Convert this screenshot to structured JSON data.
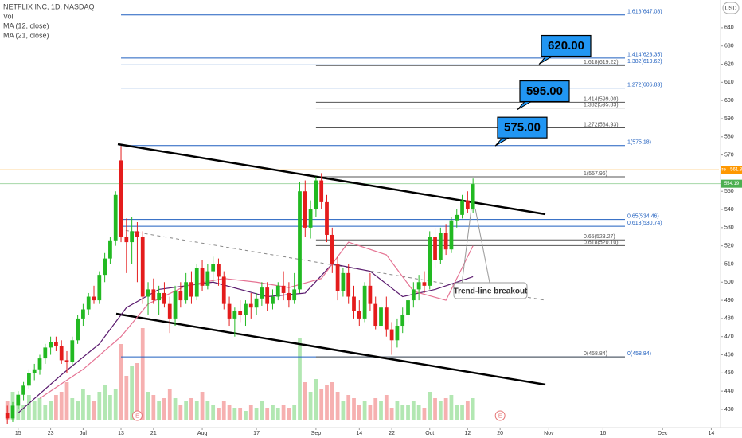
{
  "chart_data": {
    "type": "candlestick",
    "title": "NETFLIX INC, 1D, NASDAQ",
    "currency": "USD",
    "xlim": [
      -1.35,
      131.7
    ],
    "ylim": [
      419.9,
      655.3
    ],
    "yticks": [
      430,
      440,
      450,
      460,
      470,
      480,
      490,
      500,
      510,
      520,
      530,
      540,
      550,
      560,
      570,
      580,
      590,
      600,
      610,
      620,
      630,
      640
    ],
    "xticks": [
      {
        "value": 2,
        "label": "15"
      },
      {
        "value": 8,
        "label": "23"
      },
      {
        "value": 14,
        "label": "Jul"
      },
      {
        "value": 21,
        "label": "13"
      },
      {
        "value": 27,
        "label": "21"
      },
      {
        "value": 36,
        "label": "Aug"
      },
      {
        "value": 46,
        "label": "17"
      },
      {
        "value": 57,
        "label": "Sep"
      },
      {
        "value": 65,
        "label": "14"
      },
      {
        "value": 71,
        "label": "22"
      },
      {
        "value": 78,
        "label": "Oct"
      },
      {
        "value": 85,
        "label": "12"
      },
      {
        "value": 91,
        "label": "20"
      },
      {
        "value": 100,
        "label": "Nov"
      },
      {
        "value": 110,
        "label": "16"
      },
      {
        "value": 121,
        "label": "Dec"
      },
      {
        "value": 130,
        "label": "14"
      }
    ],
    "up_color": "#22b922",
    "down_color": "#e41c1c",
    "x": [
      0,
      1,
      2,
      3,
      4,
      5,
      6,
      7,
      8,
      9,
      10,
      11,
      12,
      13,
      14,
      15,
      16,
      17,
      18,
      19,
      20,
      21,
      22,
      23,
      24,
      25,
      26,
      27,
      28,
      29,
      30,
      31,
      32,
      33,
      34,
      35,
      36,
      37,
      38,
      39,
      40,
      41,
      42,
      43,
      44,
      45,
      46,
      47,
      48,
      49,
      50,
      51,
      52,
      53,
      54,
      55,
      56,
      57,
      58,
      59,
      60,
      61,
      62,
      63,
      64,
      65,
      66,
      67,
      68,
      69,
      70,
      71,
      72,
      73,
      74,
      75,
      76,
      77,
      78,
      79,
      80,
      81,
      82,
      83,
      84,
      85,
      86
    ],
    "open": [
      428,
      425,
      432,
      438,
      443,
      450,
      452,
      458,
      464,
      467,
      465,
      457,
      456,
      468,
      480,
      485,
      492,
      490,
      504,
      513,
      523,
      567,
      525,
      522,
      528,
      525,
      492,
      496,
      490,
      494,
      488,
      480,
      495,
      490,
      500,
      492,
      508,
      498,
      506,
      510,
      503,
      488,
      480,
      484,
      482,
      488,
      486,
      491,
      497,
      488,
      492,
      498,
      494,
      490,
      496,
      550,
      530,
      540,
      556,
      544,
      526,
      510,
      495,
      505,
      492,
      484,
      480,
      498,
      488,
      476,
      486,
      474,
      468,
      476,
      482,
      490,
      496,
      500,
      498,
      525,
      512,
      527,
      518,
      534,
      537,
      545,
      540
    ],
    "high": [
      432,
      434,
      440,
      445,
      452,
      455,
      460,
      466,
      470,
      470,
      468,
      462,
      470,
      482,
      488,
      494,
      498,
      506,
      516,
      525,
      550,
      575,
      535,
      536,
      533,
      528,
      500,
      502,
      498,
      500,
      492,
      498,
      500,
      505,
      506,
      510,
      512,
      510,
      514,
      513,
      506,
      492,
      486,
      490,
      490,
      494,
      494,
      500,
      500,
      496,
      500,
      506,
      500,
      505,
      555,
      556,
      545,
      558,
      560,
      548,
      530,
      514,
      508,
      510,
      498,
      490,
      500,
      505,
      492,
      490,
      492,
      478,
      480,
      486,
      492,
      500,
      504,
      506,
      528,
      530,
      530,
      532,
      536,
      540,
      548,
      550,
      557
    ],
    "low": [
      422,
      423,
      430,
      435,
      441,
      446,
      449,
      455,
      460,
      462,
      455,
      450,
      454,
      466,
      476,
      482,
      488,
      488,
      500,
      510,
      520,
      522,
      505,
      510,
      500,
      488,
      482,
      488,
      482,
      486,
      472,
      476,
      486,
      488,
      488,
      490,
      495,
      496,
      500,
      498,
      485,
      476,
      470,
      478,
      476,
      480,
      482,
      487,
      484,
      485,
      490,
      490,
      486,
      488,
      494,
      525,
      524,
      536,
      540,
      522,
      505,
      490,
      492,
      488,
      480,
      476,
      478,
      484,
      474,
      472,
      470,
      460,
      464,
      472,
      478,
      486,
      490,
      494,
      496,
      508,
      510,
      515,
      516,
      530,
      535,
      538,
      538
    ],
    "close": [
      425,
      432,
      438,
      443,
      450,
      452,
      458,
      464,
      467,
      465,
      457,
      456,
      468,
      480,
      485,
      492,
      490,
      504,
      513,
      523,
      548,
      525,
      522,
      528,
      525,
      492,
      496,
      490,
      494,
      488,
      480,
      495,
      490,
      500,
      492,
      508,
      498,
      506,
      510,
      503,
      488,
      480,
      484,
      482,
      488,
      486,
      491,
      497,
      488,
      492,
      498,
      494,
      490,
      496,
      550,
      530,
      540,
      556,
      544,
      526,
      510,
      495,
      505,
      492,
      484,
      480,
      498,
      488,
      476,
      486,
      474,
      468,
      476,
      482,
      490,
      496,
      500,
      498,
      525,
      512,
      527,
      518,
      534,
      537,
      545,
      540,
      554
    ],
    "volume": {
      "name": "Vol",
      "vlim": [
        0,
        40
      ],
      "values": [
        6,
        9,
        7,
        5,
        8,
        6,
        7,
        5,
        6,
        8,
        9,
        12,
        7,
        6,
        10,
        8,
        6,
        9,
        11,
        8,
        10,
        24,
        14,
        17,
        18,
        29,
        9,
        8,
        6,
        7,
        10,
        7,
        5,
        6,
        7,
        6,
        9,
        6,
        5,
        4,
        6,
        5,
        4,
        4,
        3,
        5,
        4,
        6,
        4,
        5,
        4,
        5,
        4,
        5,
        26,
        12,
        9,
        13,
        10,
        11,
        12,
        9,
        6,
        8,
        7,
        5,
        6,
        5,
        7,
        6,
        8,
        4,
        6,
        5,
        5,
        6,
        5,
        4,
        9,
        7,
        6,
        7,
        8,
        5,
        5,
        6,
        7
      ]
    },
    "series": [
      {
        "name": "MA (12, close)",
        "color": "#5a1a6e",
        "x": [
          2,
          10,
          17,
          22,
          28,
          38,
          48,
          55,
          60,
          67,
          73,
          79,
          86
        ],
        "values": [
          428,
          449,
          466,
          486,
          496,
          500,
          492,
          494,
          510,
          506,
          492,
          496,
          503
        ]
      },
      {
        "name": "MA (21, close)",
        "color": "#e57393",
        "x": [
          6,
          14,
          21,
          26,
          33,
          40,
          46,
          52,
          58,
          63,
          70,
          75,
          81,
          86
        ],
        "values": [
          436,
          452,
          470,
          488,
          498,
          502,
          500,
          497,
          502,
          522,
          515,
          495,
          490,
          520
        ]
      }
    ],
    "fib_sets": [
      {
        "start": 21,
        "color": "#1f5fbf",
        "levels": [
          {
            "value": 647.08,
            "label": "1.618(647.08)"
          },
          {
            "value": 623.35,
            "label": "1.414(623.35)"
          },
          {
            "value": 619.62,
            "label": "1.382(619.62)"
          },
          {
            "value": 606.83,
            "label": "1.272(606.83)"
          },
          {
            "value": 575.18,
            "label": "1(575.18)"
          },
          {
            "value": 534.46,
            "label": "0.65(534.46)"
          },
          {
            "value": 530.74,
            "label": "0.618(530.74)"
          },
          {
            "value": 458.84,
            "label": "0(458.84)"
          }
        ]
      },
      {
        "start": 57,
        "color": "#555555",
        "levels": [
          {
            "value": 619.22,
            "label": "1.618(619.22)"
          },
          {
            "value": 599.0,
            "label": "1.414(599.00)"
          },
          {
            "value": 595.83,
            "label": "1.382(595.83)"
          },
          {
            "value": 584.93,
            "label": "1.272(584.93)"
          },
          {
            "value": 557.96,
            "label": "1(557.96)"
          },
          {
            "value": 523.27,
            "label": "0.65(523.27)"
          },
          {
            "value": 520.1,
            "label": "0.618(520.10)"
          },
          {
            "value": 458.84,
            "label": "0(458.84)"
          }
        ]
      }
    ],
    "targets": [
      {
        "value": 620,
        "label": "620.00"
      },
      {
        "value": 595,
        "label": "595.00"
      },
      {
        "value": 575,
        "label": "575.00"
      }
    ],
    "price_tags": [
      {
        "value": 561.87,
        "label": "Pre · 561.87",
        "color": "#ff9800"
      },
      {
        "value": 554.19,
        "color": "#4caf50"
      }
    ],
    "annotation": "Trend-line breakout",
    "events": [
      {
        "x": 24,
        "label": "E"
      },
      {
        "x": 91,
        "label": "E"
      }
    ]
  }
}
